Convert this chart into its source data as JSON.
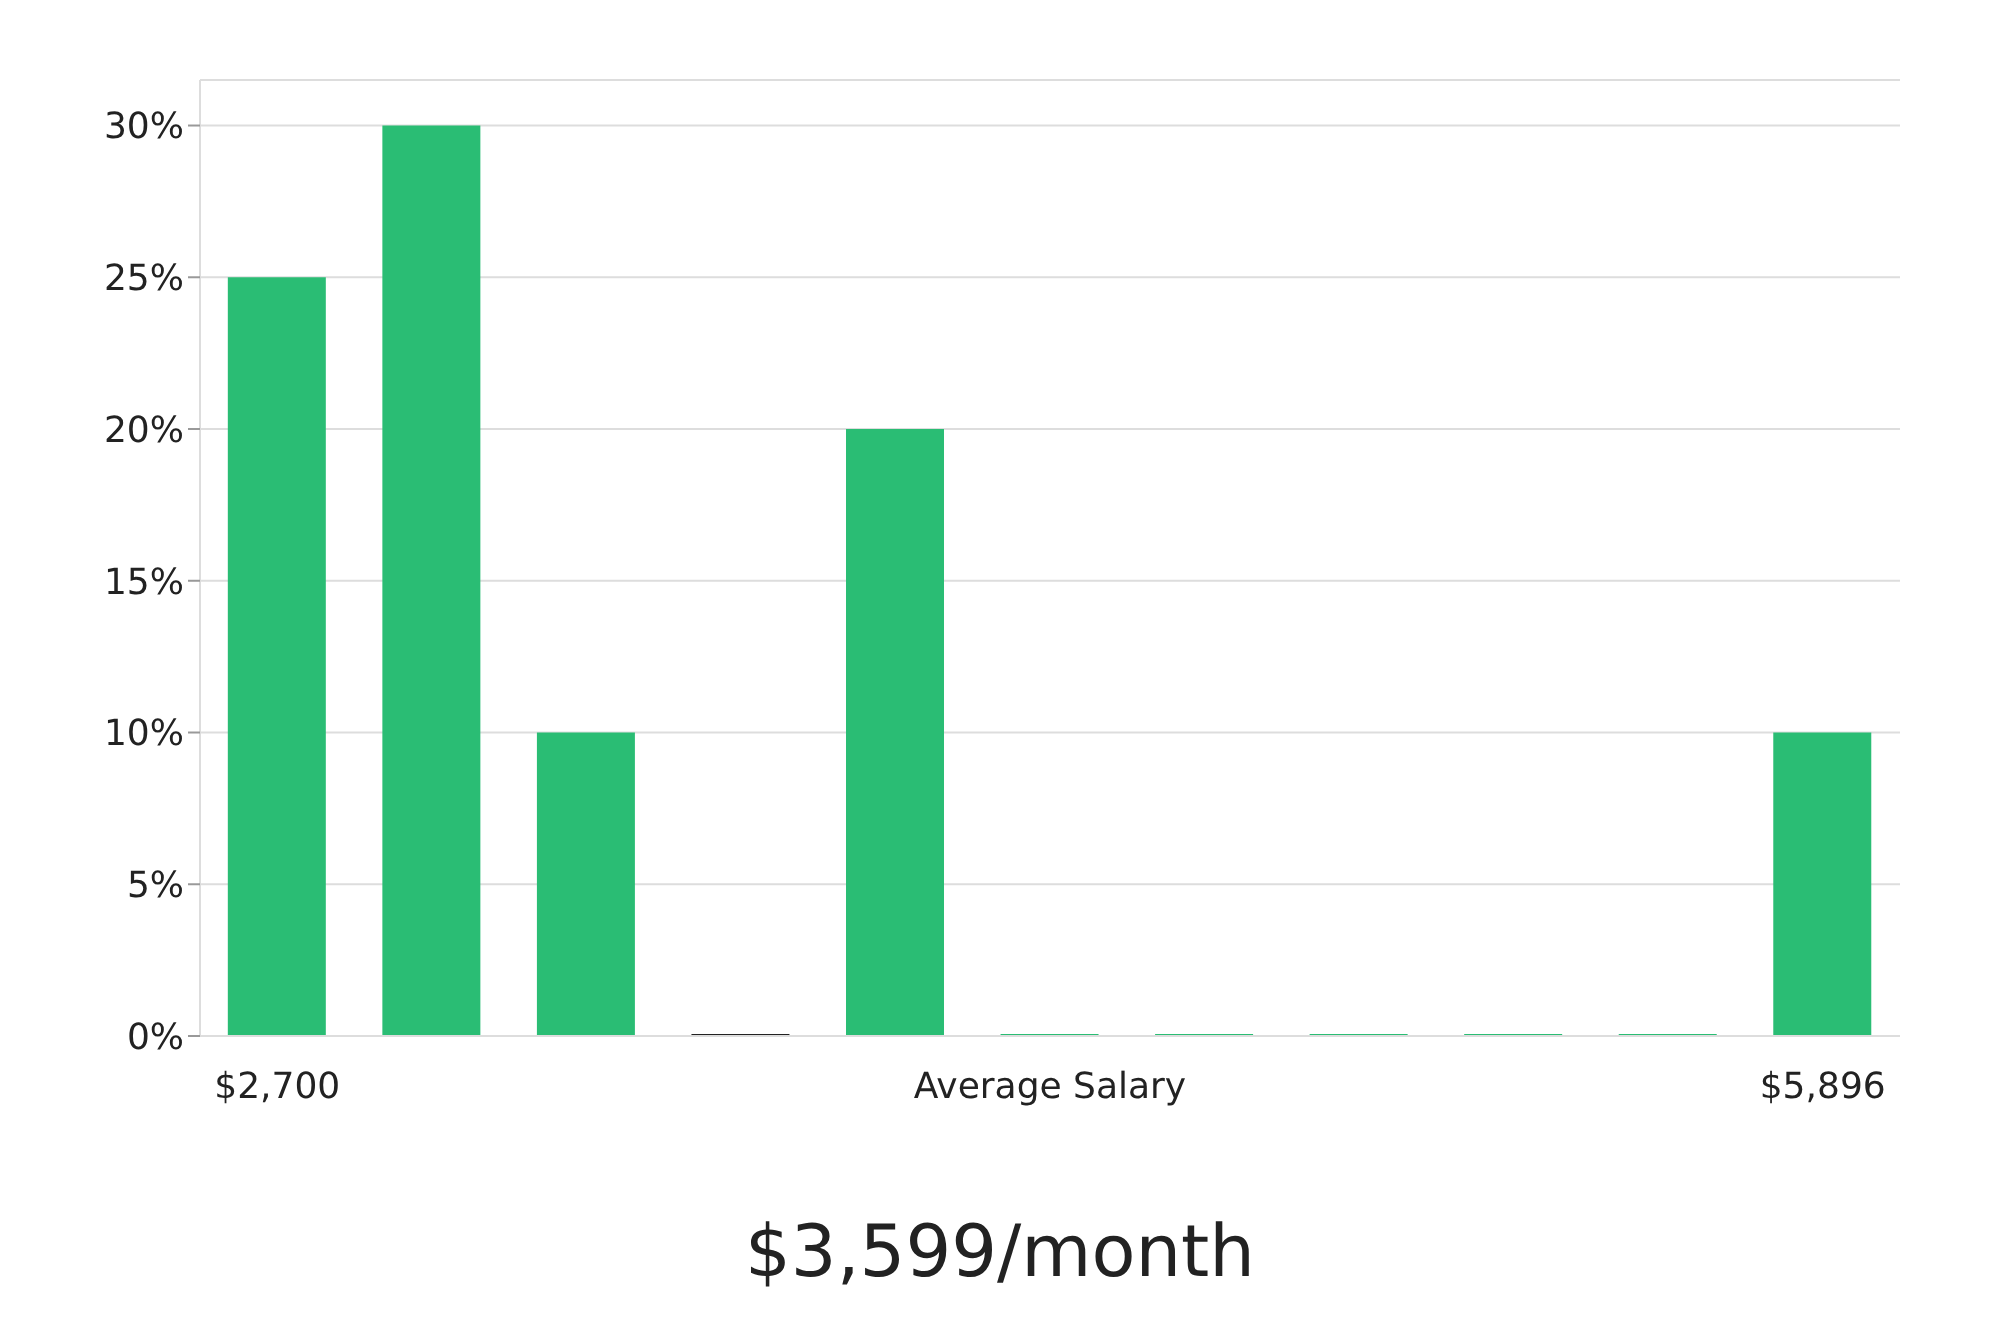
{
  "chart_data": {
    "type": "bar",
    "title": "$3,599/month",
    "categories": [
      "$2,700",
      null,
      null,
      null,
      null,
      "Average Salary",
      null,
      null,
      null,
      null,
      "$5,896"
    ],
    "values": [
      25,
      30,
      10,
      0,
      20,
      0,
      0,
      0,
      0,
      0,
      10
    ],
    "colors": [
      "#2abd74",
      "#2abd74",
      "#2abd74",
      "#222222",
      "#2abd74",
      "#2abd74",
      "#2abd74",
      "#2abd74",
      "#2abd74",
      "#2abd74",
      "#2abd74"
    ],
    "ylim": [
      0,
      31.5
    ],
    "yticks": [
      {
        "value": 0,
        "label": "0%"
      },
      {
        "value": 5,
        "label": "5%"
      },
      {
        "value": 10,
        "label": "10%"
      },
      {
        "value": 15,
        "label": "15%"
      },
      {
        "value": 20,
        "label": "20%"
      },
      {
        "value": 25,
        "label": "25%"
      },
      {
        "value": 30,
        "label": "30%"
      }
    ],
    "grid": "y"
  }
}
